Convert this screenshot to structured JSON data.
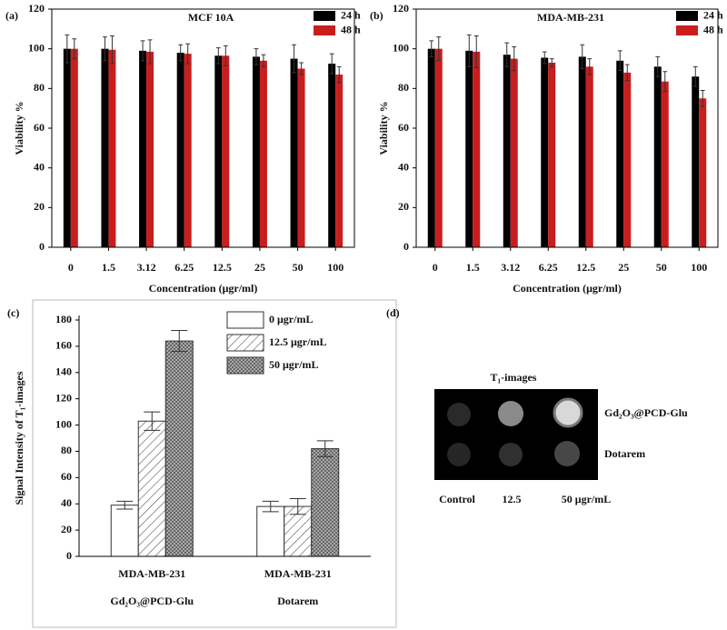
{
  "chart_data": [
    {
      "type": "bar",
      "label": "(a)",
      "title": "MCF 10A",
      "x_label": "Concentration (μgr/ml)",
      "y_label": "Viability %",
      "categories": [
        "0",
        "1.5",
        "3.12",
        "6.25",
        "12.5",
        "25",
        "50",
        "100"
      ],
      "series": [
        {
          "name": "24 h",
          "color": "#000000",
          "values": [
            100,
            100,
            99,
            98,
            96.5,
            96,
            95,
            92.5
          ],
          "errors": [
            7,
            6,
            5,
            4,
            4,
            4,
            7,
            5
          ]
        },
        {
          "name": "48 h",
          "color": "#c81e1e",
          "values": [
            100,
            99.5,
            98.5,
            97.5,
            96.5,
            94,
            90,
            87
          ],
          "errors": [
            5,
            7,
            6,
            5,
            5,
            3,
            3,
            4
          ]
        }
      ],
      "ylim": [
        0,
        120
      ],
      "yticks": [
        0,
        20,
        40,
        60,
        80,
        100,
        120
      ],
      "legend": "upper right"
    },
    {
      "type": "bar",
      "label": "(b)",
      "title": "MDA-MB-231",
      "x_label": "Concentration (μgr/ml)",
      "y_label": "Viability %",
      "categories": [
        "0",
        "1.5",
        "3.12",
        "6.25",
        "12.5",
        "25",
        "50",
        "100"
      ],
      "series": [
        {
          "name": "24 h",
          "color": "#000000",
          "values": [
            100,
            99,
            97,
            95.5,
            96,
            94,
            91,
            86
          ],
          "errors": [
            4,
            8,
            6,
            3,
            6,
            5,
            5,
            5
          ]
        },
        {
          "name": "48 h",
          "color": "#c81e1e",
          "values": [
            100,
            98.5,
            95,
            93,
            91,
            88,
            83.5,
            75
          ],
          "errors": [
            6,
            8,
            6,
            2,
            4,
            4,
            5,
            4
          ]
        }
      ],
      "ylim": [
        0,
        120
      ],
      "yticks": [
        0,
        20,
        40,
        60,
        80,
        100,
        120
      ],
      "legend": "upper right"
    },
    {
      "type": "bar",
      "label": "(c)",
      "y_label": "Signal Intensity of T₁-images",
      "categories": [
        "MDA-MB-231",
        "MDA-MB-231"
      ],
      "group_labels": [
        "Gd₂O₃@PCD-Glu",
        "Dotarem"
      ],
      "series": [
        {
          "name": "0 μgr/mL",
          "color": "#ffffff",
          "pattern": "none",
          "values": [
            39,
            38
          ],
          "errors": [
            3,
            4
          ]
        },
        {
          "name": "12.5 μgr/mL",
          "color": "#ffffff",
          "pattern": "hatch",
          "values": [
            103,
            38
          ],
          "errors": [
            7,
            6
          ]
        },
        {
          "name": "50 μgr/mL",
          "color": "#ffffff",
          "pattern": "crosshatch",
          "values": [
            164,
            82
          ],
          "errors": [
            8,
            6
          ]
        }
      ],
      "ylim": [
        0,
        180
      ],
      "yticks": [
        0,
        20,
        40,
        60,
        80,
        100,
        120,
        140,
        160,
        180
      ],
      "legend": "upper right"
    }
  ],
  "image_panel": {
    "label": "(d)",
    "title": "T₁-images",
    "row_labels": [
      "Gd₂O₃@PCD-Glu",
      "Dotarem"
    ],
    "column_labels": [
      "Control",
      "12.5",
      "50 μgr/mL"
    ]
  }
}
